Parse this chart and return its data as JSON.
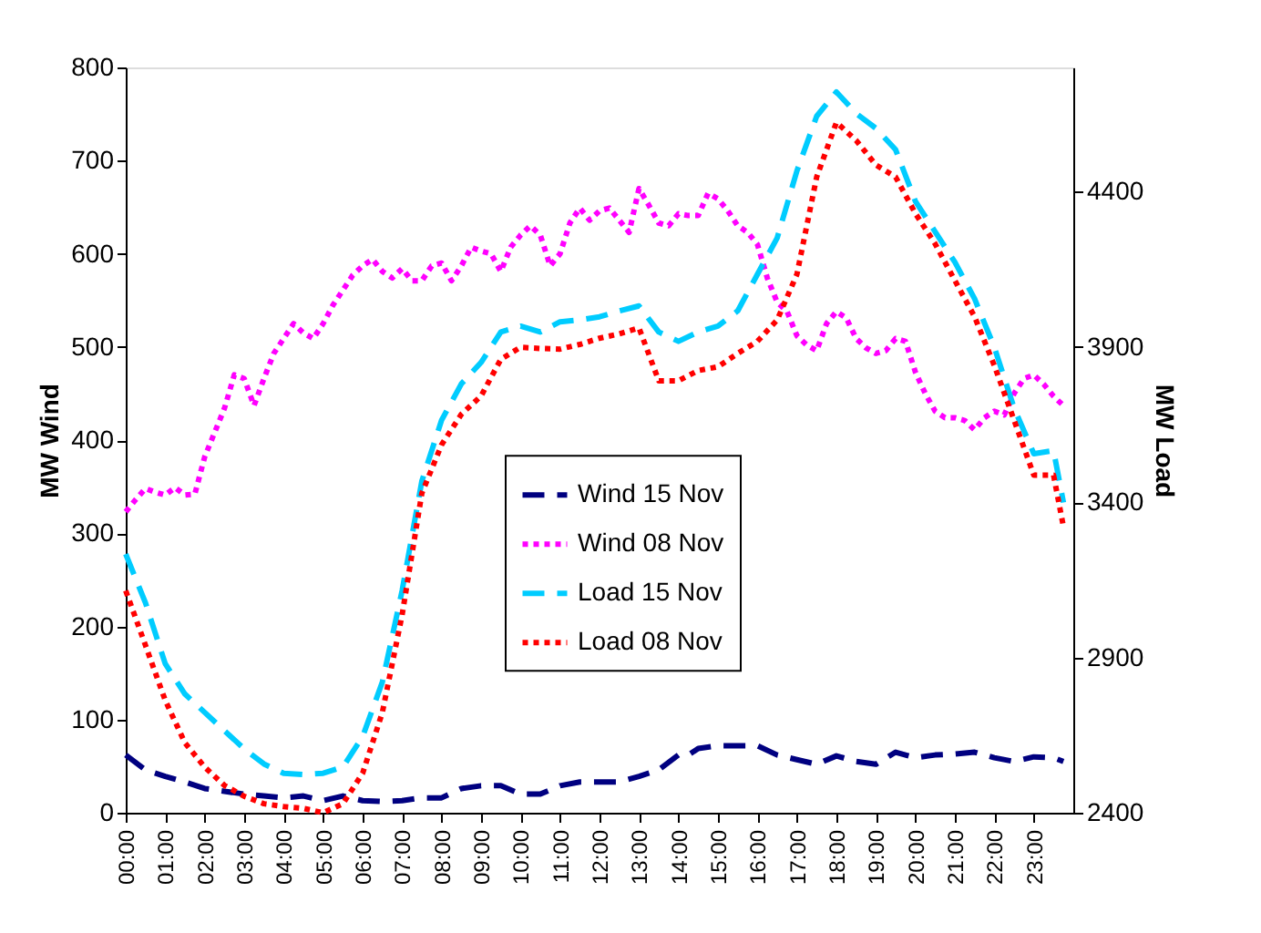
{
  "chart_data": {
    "type": "line",
    "xlim": [
      0,
      24
    ],
    "xticks": [
      {
        "value": 0,
        "label": "00:00"
      },
      {
        "value": 1,
        "label": "01:00"
      },
      {
        "value": 2,
        "label": "02:00"
      },
      {
        "value": 3,
        "label": "03:00"
      },
      {
        "value": 4,
        "label": "04:00"
      },
      {
        "value": 5,
        "label": "05:00"
      },
      {
        "value": 6,
        "label": "06:00"
      },
      {
        "value": 7,
        "label": "07:00"
      },
      {
        "value": 8,
        "label": "08:00"
      },
      {
        "value": 9,
        "label": "09:00"
      },
      {
        "value": 10,
        "label": "10:00"
      },
      {
        "value": 11,
        "label": "11:00"
      },
      {
        "value": 12,
        "label": "12:00"
      },
      {
        "value": 13,
        "label": "13:00"
      },
      {
        "value": 14,
        "label": "14:00"
      },
      {
        "value": 15,
        "label": "15:00"
      },
      {
        "value": 16,
        "label": "16:00"
      },
      {
        "value": 17,
        "label": "17:00"
      },
      {
        "value": 18,
        "label": "18:00"
      },
      {
        "value": 19,
        "label": "19:00"
      },
      {
        "value": 20,
        "label": "20:00"
      },
      {
        "value": 21,
        "label": "21:00"
      },
      {
        "value": 22,
        "label": "22:00"
      },
      {
        "value": 23,
        "label": "23:00"
      }
    ],
    "ylabel": "MW Wind",
    "y2label": "MW Load",
    "ylim": [
      0,
      800
    ],
    "yticks": [
      0,
      100,
      200,
      300,
      400,
      500,
      600,
      700,
      800
    ],
    "y2lim": [
      2400,
      4800
    ],
    "y2ticks": [
      2400,
      2900,
      3400,
      3900,
      4400
    ],
    "grid": false,
    "legend": "center",
    "series": [
      {
        "name": "Wind 15 Nov",
        "color": "#000080",
        "line_style": "dashed",
        "x": [
          0,
          0.5,
          1,
          1.5,
          2,
          2.5,
          3,
          3.5,
          4,
          4.5,
          5,
          5.5,
          6,
          6.5,
          7,
          7.5,
          8,
          8.5,
          9,
          9.5,
          10,
          10.5,
          11,
          11.5,
          12,
          12.5,
          13,
          13.5,
          14,
          14.25,
          14.5,
          15,
          15.5,
          16,
          16.5,
          17,
          17.5,
          18,
          18.5,
          19,
          19.5,
          20,
          20.5,
          21,
          21.5,
          22,
          22.5,
          23,
          23.5,
          23.75
        ],
        "values": [
          62,
          46,
          39,
          33,
          26,
          23,
          20,
          18,
          16,
          18,
          13,
          18,
          13,
          12,
          13,
          16,
          16,
          26,
          29,
          29,
          20,
          20,
          29,
          33,
          33,
          33,
          39,
          46,
          62,
          62,
          69,
          72,
          72,
          72,
          62,
          57,
          52,
          61,
          55,
          52,
          65,
          59,
          62,
          63,
          65,
          59,
          55,
          60,
          59,
          55
        ]
      },
      {
        "name": "Wind 08 Nov",
        "color": "#ff00ff",
        "line_style": "dotted",
        "x": [
          0,
          0.25,
          0.5,
          0.75,
          1,
          1.25,
          1.5,
          1.75,
          2,
          2.25,
          2.5,
          2.75,
          3,
          3.25,
          3.5,
          3.75,
          4,
          4.25,
          4.5,
          4.75,
          5,
          5.25,
          5.5,
          5.75,
          6,
          6.25,
          6.5,
          6.75,
          7,
          7.25,
          7.5,
          7.75,
          8,
          8.25,
          8.5,
          8.75,
          9,
          9.25,
          9.5,
          9.75,
          10,
          10.25,
          10.5,
          10.75,
          11,
          11.25,
          11.5,
          11.75,
          12,
          12.25,
          12.5,
          12.75,
          13,
          13.25,
          13.5,
          13.75,
          14,
          14.25,
          14.5,
          14.75,
          15,
          15.25,
          15.5,
          15.75,
          16,
          16.25,
          16.5,
          16.75,
          17,
          17.25,
          17.5,
          17.75,
          18,
          18.25,
          18.5,
          18.75,
          19,
          19.25,
          19.5,
          19.75,
          20,
          20.25,
          20.5,
          20.75,
          21,
          21.25,
          21.5,
          21.75,
          22,
          22.25,
          22.5,
          22.75,
          23,
          23.25,
          23.5,
          23.75
        ],
        "values": [
          323,
          336,
          348,
          344,
          341,
          349,
          341,
          342,
          382,
          408,
          434,
          470,
          466,
          437,
          466,
          493,
          509,
          525,
          515,
          509,
          525,
          545,
          561,
          577,
          587,
          594,
          581,
          574,
          584,
          571,
          571,
          587,
          590,
          571,
          587,
          607,
          603,
          600,
          581,
          607,
          620,
          630,
          620,
          587,
          600,
          633,
          649,
          636,
          646,
          649,
          636,
          623,
          670,
          652,
          633,
          630,
          643,
          641,
          641,
          665,
          659,
          646,
          630,
          623,
          610,
          574,
          548,
          538,
          512,
          502,
          496,
          525,
          538,
          531,
          509,
          499,
          493,
          496,
          509,
          506,
          473,
          450,
          431,
          424,
          424,
          421,
          411,
          424,
          431,
          427,
          450,
          466,
          470,
          460,
          447,
          437
        ]
      },
      {
        "name": "Load 15 Nov",
        "color": "#00ccff",
        "line_style": "dashed",
        "axis": "y2",
        "x": [
          0,
          0.5,
          1,
          1.5,
          2,
          2.5,
          3,
          3.5,
          4,
          4.5,
          5,
          5.5,
          6,
          6.5,
          7,
          7.5,
          8,
          8.5,
          9,
          9.5,
          10,
          10.5,
          11,
          11.5,
          12,
          12.5,
          13,
          13.5,
          14,
          14.5,
          15,
          15.5,
          16,
          16.5,
          17,
          17.5,
          18,
          18.5,
          19,
          19.5,
          20,
          20.5,
          21,
          21.5,
          22,
          22.5,
          23,
          23.5,
          23.75
        ],
        "values": [
          3233,
          3076,
          2880,
          2782,
          2723,
          2664,
          2606,
          2557,
          2527,
          2523,
          2527,
          2547,
          2645,
          2821,
          3115,
          3468,
          3664,
          3781,
          3850,
          3948,
          3967,
          3948,
          3981,
          3987,
          3997,
          4016,
          4032,
          3948,
          3918,
          3948,
          3967,
          4016,
          4134,
          4251,
          4467,
          4643,
          4721,
          4652,
          4604,
          4535,
          4369,
          4271,
          4173,
          4055,
          3899,
          3703,
          3556,
          3566,
          3399
        ]
      },
      {
        "name": "Load 08 Nov",
        "color": "#ff0000",
        "line_style": "dotted",
        "axis": "y2",
        "x": [
          0,
          0.5,
          1,
          1.5,
          2,
          2.5,
          3,
          3.5,
          4,
          4.5,
          5,
          5.5,
          6,
          6.5,
          7,
          7.5,
          8,
          8.5,
          9,
          9.5,
          10,
          10.5,
          11,
          11.5,
          12,
          12.5,
          13,
          13.5,
          14,
          14.5,
          15,
          15.5,
          16,
          16.5,
          17,
          17.5,
          18,
          18.5,
          19,
          19.5,
          20,
          20.5,
          21,
          21.5,
          22,
          22.5,
          23,
          23.5,
          23.75
        ],
        "values": [
          3115,
          2939,
          2762,
          2625,
          2547,
          2488,
          2453,
          2429,
          2420,
          2414,
          2400,
          2429,
          2527,
          2723,
          3037,
          3429,
          3585,
          3683,
          3742,
          3860,
          3899,
          3895,
          3893,
          3908,
          3928,
          3942,
          3961,
          3791,
          3791,
          3824,
          3836,
          3879,
          3918,
          3987,
          4134,
          4447,
          4623,
          4565,
          4486,
          4447,
          4330,
          4232,
          4114,
          3997,
          3840,
          3664,
          3487,
          3487,
          3321
        ]
      }
    ]
  }
}
